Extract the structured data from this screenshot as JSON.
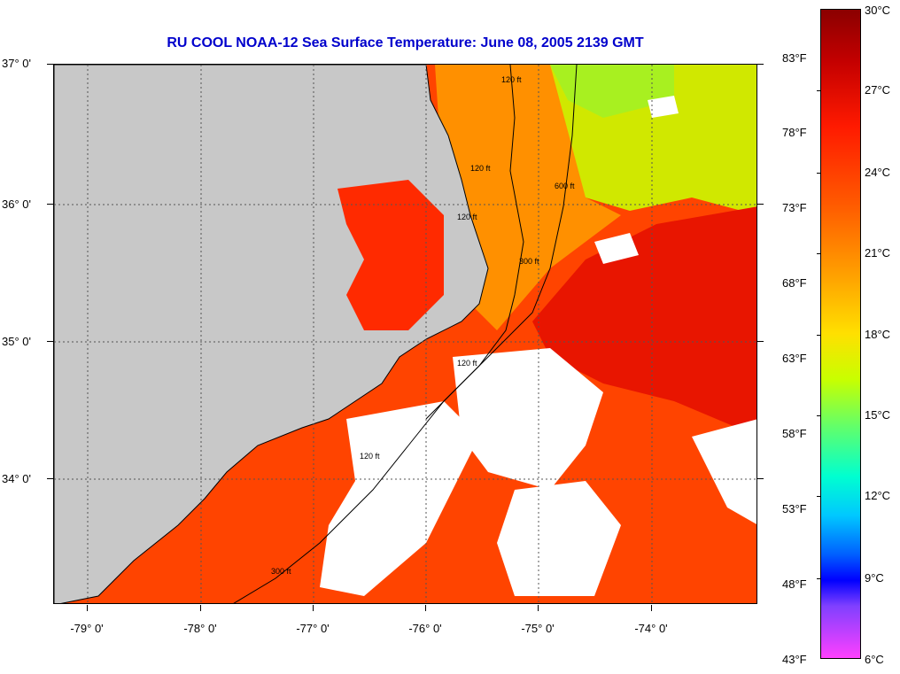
{
  "title": "RU COOL  NOAA-12  Sea Surface Temperature:  June 08, 2005 2139 GMT",
  "map": {
    "lat_labels": [
      {
        "text": "37° 0'",
        "lat": 37
      },
      {
        "text": "36° 0'",
        "lat": 36
      },
      {
        "text": "35° 0'",
        "lat": 35
      },
      {
        "text": "34° 0'",
        "lat": 34
      }
    ],
    "lon_labels": [
      {
        "text": "-79° 0'",
        "lon": -79
      },
      {
        "text": "-78° 0'",
        "lon": -78
      },
      {
        "text": "-77° 0'",
        "lon": -77
      },
      {
        "text": "-76° 0'",
        "lon": -76
      },
      {
        "text": "-75° 0'",
        "lon": -75
      },
      {
        "text": "-74° 0'",
        "lon": -74
      }
    ],
    "contour_labels": [
      "120 ft",
      "120 ft",
      "120 ft",
      "600 ft",
      "300 ft",
      "120 ft",
      "120 ft",
      "300 ft"
    ],
    "colors": {
      "land": "#c8c8c8",
      "cloud": "#ffffff",
      "warm_water": "#ff3300",
      "gulf_stream": "#e81000",
      "cool_water": "#c8f000"
    }
  },
  "colorbar": {
    "celsius": [
      "30°C",
      "27°C",
      "24°C",
      "21°C",
      "18°C",
      "15°C",
      "12°C",
      "9°C",
      "6°C"
    ],
    "fahrenheit": [
      "83°F",
      "78°F",
      "73°F",
      "68°F",
      "63°F",
      "58°F",
      "53°F",
      "48°F",
      "43°F"
    ]
  }
}
